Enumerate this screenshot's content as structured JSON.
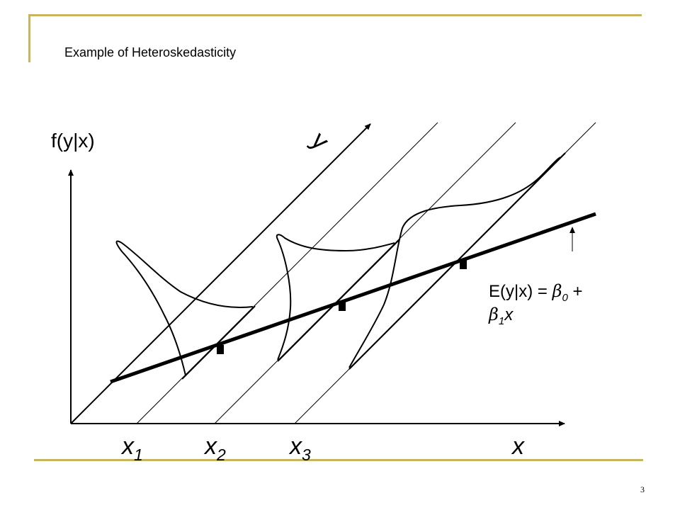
{
  "slide": {
    "title": "Example of Heteroskedasticity",
    "page_number": "3",
    "accent_color": "#c8b560"
  },
  "diagram": {
    "ylabel": "f(y|x)",
    "y_axis_label": "y",
    "x_axis_label": "x",
    "x_ticks": [
      {
        "base": "x",
        "sub": "1"
      },
      {
        "base": "x",
        "sub": "2"
      },
      {
        "base": "x",
        "sub": "3"
      }
    ],
    "equation": {
      "lhs": "E(y|x) = ",
      "beta": "β",
      "sub0": "0",
      "plus": " +",
      "sub1": "1",
      "var": "x"
    }
  }
}
